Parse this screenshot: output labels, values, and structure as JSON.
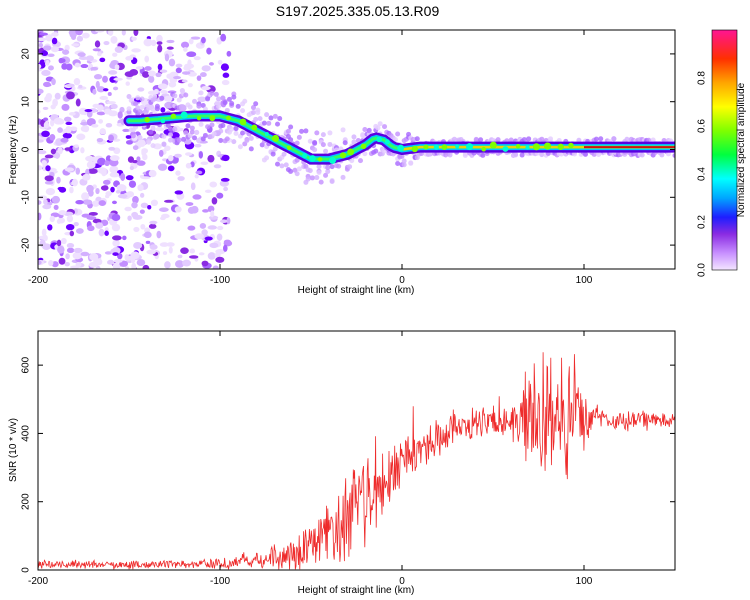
{
  "title": "S197.2025.335.05.13.R09",
  "colors": {
    "snr_line": "#ee2b2b",
    "centerline": "#cc1111",
    "frame": "#000000"
  },
  "chart_data": [
    {
      "type": "heatmap",
      "title": "S197.2025.335.05.13.R09",
      "xlabel": "Height of straight line (km)",
      "ylabel": "Frequency (Hz)",
      "xlim": [
        -200,
        150
      ],
      "ylim": [
        -25,
        25
      ],
      "x_ticks": [
        {
          "value": -200,
          "label": "-200"
        },
        {
          "value": -100,
          "label": "-100"
        },
        {
          "value": 0,
          "label": "0"
        },
        {
          "value": 100,
          "label": "100"
        }
      ],
      "y_ticks": [
        {
          "value": 20,
          "label": "20"
        },
        {
          "value": 10,
          "label": "10"
        },
        {
          "value": 0,
          "label": "0"
        },
        {
          "value": -10,
          "label": "-10"
        },
        {
          "value": -20,
          "label": "-20"
        }
      ],
      "colorbar": {
        "label": "Normalized spectral amplitude",
        "range": [
          0,
          1
        ],
        "ticks": [
          {
            "value": 0.0,
            "label": "0.0"
          },
          {
            "value": 0.2,
            "label": "0.2"
          },
          {
            "value": 0.4,
            "label": "0.4"
          },
          {
            "value": 0.6,
            "label": "0.6"
          },
          {
            "value": 0.8,
            "label": "0.8"
          }
        ]
      },
      "ridge_points": [
        {
          "x": -145,
          "y": 6
        },
        {
          "x": -130,
          "y": 6.5
        },
        {
          "x": -115,
          "y": 7
        },
        {
          "x": -100,
          "y": 7
        },
        {
          "x": -90,
          "y": 6
        },
        {
          "x": -80,
          "y": 4
        },
        {
          "x": -70,
          "y": 2
        },
        {
          "x": -60,
          "y": 0
        },
        {
          "x": -50,
          "y": -2
        },
        {
          "x": -40,
          "y": -2
        },
        {
          "x": -30,
          "y": -1
        },
        {
          "x": -20,
          "y": 1
        },
        {
          "x": -15,
          "y": 2.5
        },
        {
          "x": -10,
          "y": 2
        },
        {
          "x": -5,
          "y": 0.5
        },
        {
          "x": 0,
          "y": 0
        },
        {
          "x": 10,
          "y": 0.5
        },
        {
          "x": 30,
          "y": 0.5
        },
        {
          "x": 50,
          "y": 0.5
        },
        {
          "x": 70,
          "y": 0.5
        },
        {
          "x": 90,
          "y": 0.5
        },
        {
          "x": 100,
          "y": 0.5
        },
        {
          "x": 150,
          "y": 0.5
        }
      ]
    },
    {
      "type": "line",
      "xlabel": "Height of straight line (km)",
      "ylabel": "SNR (10 * v/v)",
      "xlim": [
        -200,
        150
      ],
      "ylim": [
        0,
        700
      ],
      "x_ticks": [
        {
          "value": -200,
          "label": "-200"
        },
        {
          "value": -100,
          "label": "-100"
        },
        {
          "value": 0,
          "label": "0"
        },
        {
          "value": 100,
          "label": "100"
        }
      ],
      "y_ticks": [
        {
          "value": 0,
          "label": "0"
        },
        {
          "value": 200,
          "label": "200"
        },
        {
          "value": 400,
          "label": "400"
        },
        {
          "value": 600,
          "label": "600"
        }
      ],
      "series": [
        {
          "name": "SNR",
          "envelope": [
            {
              "x": -200,
              "base": 15,
              "spread": 15
            },
            {
              "x": -150,
              "base": 15,
              "spread": 15
            },
            {
              "x": -120,
              "base": 18,
              "spread": 15
            },
            {
              "x": -100,
              "base": 20,
              "spread": 20
            },
            {
              "x": -80,
              "base": 30,
              "spread": 30
            },
            {
              "x": -60,
              "base": 45,
              "spread": 55
            },
            {
              "x": -45,
              "base": 80,
              "spread": 120
            },
            {
              "x": -30,
              "base": 150,
              "spread": 150
            },
            {
              "x": -10,
              "base": 250,
              "spread": 120
            },
            {
              "x": 10,
              "base": 350,
              "spread": 80
            },
            {
              "x": 30,
              "base": 420,
              "spread": 50
            },
            {
              "x": 60,
              "base": 440,
              "spread": 60
            },
            {
              "x": 70,
              "base": 440,
              "spread": 220
            },
            {
              "x": 95,
              "base": 440,
              "spread": 200
            },
            {
              "x": 105,
              "base": 440,
              "spread": 40
            },
            {
              "x": 150,
              "base": 440,
              "spread": 30
            }
          ]
        }
      ]
    }
  ]
}
